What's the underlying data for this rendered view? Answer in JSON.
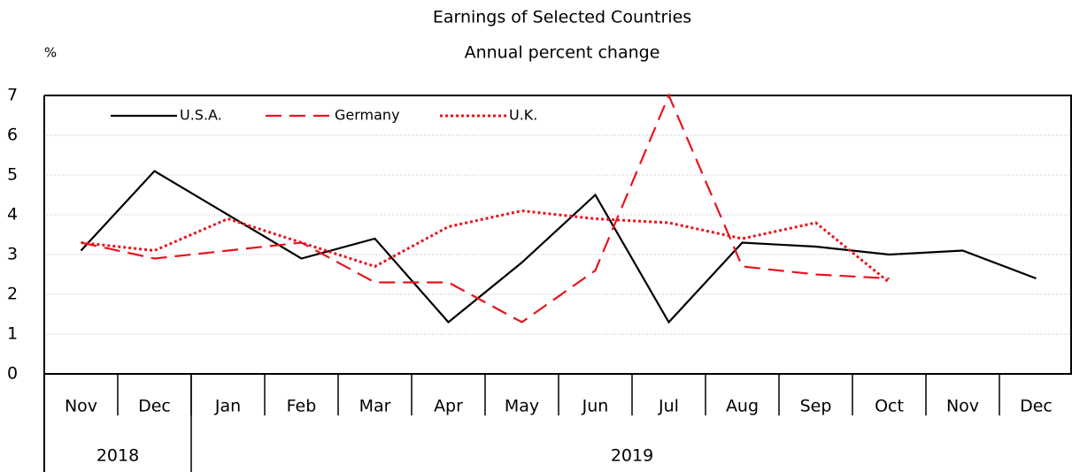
{
  "chart_data": {
    "type": "line",
    "title": "Earnings of Selected Countries",
    "subtitle": "Annual percent change",
    "y_label": "%",
    "categories": [
      "Nov",
      "Dec",
      "Jan",
      "Feb",
      "Mar",
      "Apr",
      "May",
      "Jun",
      "Jul",
      "Aug",
      "Sep",
      "Oct",
      "Nov",
      "Dec"
    ],
    "year_groups": [
      {
        "label": "2018",
        "count": 2
      },
      {
        "label": "2019",
        "count": 12
      }
    ],
    "series": [
      {
        "name": "U.S.A.",
        "color": "#000000",
        "dash": "solid",
        "values": [
          3.1,
          5.1,
          4.0,
          2.9,
          3.4,
          1.3,
          2.8,
          4.5,
          1.3,
          3.3,
          3.2,
          3.0,
          3.1,
          2.4
        ]
      },
      {
        "name": "Germany",
        "color": "#e8141e",
        "dash": "dashed",
        "values": [
          3.3,
          2.9,
          3.1,
          3.3,
          2.3,
          2.3,
          1.3,
          2.6,
          7.0,
          2.7,
          2.5,
          2.4,
          null,
          null
        ]
      },
      {
        "name": "U.K.",
        "color": "#e8141e",
        "dash": "dotted",
        "values": [
          3.3,
          3.1,
          3.9,
          3.3,
          2.7,
          3.7,
          4.1,
          3.9,
          3.8,
          3.4,
          3.8,
          2.3,
          null,
          null
        ]
      }
    ],
    "ylim": [
      0,
      7
    ],
    "yticks": [
      0,
      1,
      2,
      3,
      4,
      5,
      6,
      7
    ],
    "grid": true,
    "legend": "top-left"
  }
}
